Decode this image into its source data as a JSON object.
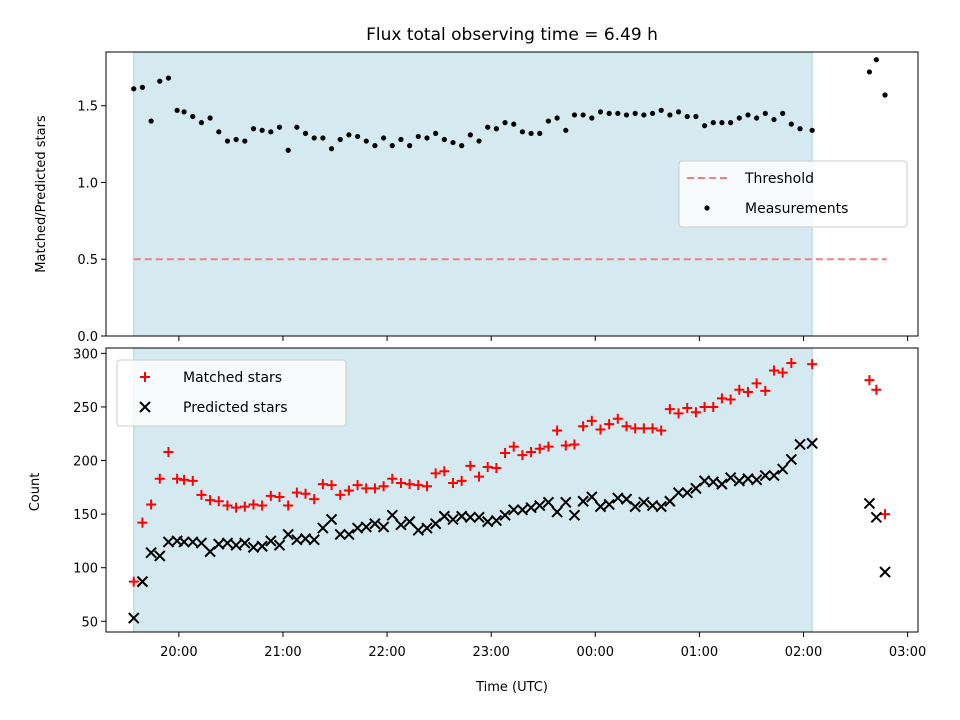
{
  "chart_data": [
    {
      "type": "scatter",
      "title": "Flux total observing time = 6.49 h",
      "xlabel": "",
      "ylabel": "Matched/Predicted stars",
      "ylim": [
        0,
        1.85
      ],
      "yticks": [
        0.0,
        0.5,
        1.0,
        1.5
      ],
      "ytick_labels": [
        "0.0",
        "0.5",
        "1.0",
        "1.5"
      ],
      "shaded_span": {
        "start": "19:34",
        "end": "02:05",
        "color": "#d4eaf0"
      },
      "legend": {
        "placement": "center-right"
      },
      "series": [
        {
          "name": "Threshold",
          "style": "dashed-line",
          "color": "#f08080",
          "points": [
            [
              "19:34",
              0.5
            ],
            [
              "02:48",
              0.5
            ]
          ]
        },
        {
          "name": "Measurements",
          "style": "dot",
          "color": "#000000",
          "points": [
            [
              "19:34",
              1.61
            ],
            [
              "19:39",
              1.62
            ],
            [
              "19:44",
              1.4
            ],
            [
              "19:49",
              1.66
            ],
            [
              "19:54",
              1.68
            ],
            [
              "19:59",
              1.47
            ],
            [
              "20:03",
              1.46
            ],
            [
              "20:08",
              1.43
            ],
            [
              "20:13",
              1.39
            ],
            [
              "20:18",
              1.42
            ],
            [
              "20:23",
              1.33
            ],
            [
              "20:28",
              1.27
            ],
            [
              "20:33",
              1.28
            ],
            [
              "20:38",
              1.27
            ],
            [
              "20:43",
              1.35
            ],
            [
              "20:48",
              1.34
            ],
            [
              "20:53",
              1.33
            ],
            [
              "20:58",
              1.36
            ],
            [
              "21:03",
              1.21
            ],
            [
              "21:08",
              1.36
            ],
            [
              "21:13",
              1.32
            ],
            [
              "21:18",
              1.29
            ],
            [
              "21:23",
              1.29
            ],
            [
              "21:28",
              1.22
            ],
            [
              "21:33",
              1.28
            ],
            [
              "21:38",
              1.31
            ],
            [
              "21:43",
              1.3
            ],
            [
              "21:48",
              1.27
            ],
            [
              "21:53",
              1.24
            ],
            [
              "21:58",
              1.29
            ],
            [
              "22:03",
              1.24
            ],
            [
              "22:08",
              1.28
            ],
            [
              "22:13",
              1.24
            ],
            [
              "22:18",
              1.3
            ],
            [
              "22:23",
              1.29
            ],
            [
              "22:28",
              1.32
            ],
            [
              "22:33",
              1.28
            ],
            [
              "22:38",
              1.26
            ],
            [
              "22:43",
              1.24
            ],
            [
              "22:48",
              1.31
            ],
            [
              "22:53",
              1.27
            ],
            [
              "22:58",
              1.36
            ],
            [
              "23:03",
              1.35
            ],
            [
              "23:08",
              1.39
            ],
            [
              "23:13",
              1.38
            ],
            [
              "23:18",
              1.33
            ],
            [
              "23:23",
              1.32
            ],
            [
              "23:28",
              1.32
            ],
            [
              "23:33",
              1.4
            ],
            [
              "23:38",
              1.42
            ],
            [
              "23:43",
              1.34
            ],
            [
              "23:48",
              1.44
            ],
            [
              "23:53",
              1.44
            ],
            [
              "23:58",
              1.42
            ],
            [
              "00:03",
              1.46
            ],
            [
              "00:08",
              1.45
            ],
            [
              "00:13",
              1.45
            ],
            [
              "00:18",
              1.44
            ],
            [
              "00:23",
              1.45
            ],
            [
              "00:28",
              1.44
            ],
            [
              "00:33",
              1.45
            ],
            [
              "00:38",
              1.47
            ],
            [
              "00:43",
              1.44
            ],
            [
              "00:48",
              1.46
            ],
            [
              "00:53",
              1.43
            ],
            [
              "00:58",
              1.43
            ],
            [
              "01:03",
              1.37
            ],
            [
              "01:08",
              1.39
            ],
            [
              "01:13",
              1.39
            ],
            [
              "01:18",
              1.39
            ],
            [
              "01:23",
              1.42
            ],
            [
              "01:28",
              1.44
            ],
            [
              "01:33",
              1.42
            ],
            [
              "01:38",
              1.45
            ],
            [
              "01:43",
              1.41
            ],
            [
              "01:48",
              1.45
            ],
            [
              "01:53",
              1.38
            ],
            [
              "01:58",
              1.35
            ],
            [
              "02:05",
              1.34
            ],
            [
              "02:38",
              1.72
            ],
            [
              "02:42",
              1.8
            ],
            [
              "02:47",
              1.57
            ]
          ]
        }
      ]
    },
    {
      "type": "scatter",
      "title": "",
      "xlabel": "Time (UTC)",
      "ylabel": "Count",
      "ylim": [
        40,
        305
      ],
      "yticks": [
        50,
        100,
        150,
        200,
        250,
        300
      ],
      "ytick_labels": [
        "50",
        "100",
        "150",
        "200",
        "250",
        "300"
      ],
      "xlim": [
        "19:18",
        "03:06"
      ],
      "xticks": [
        "20:00",
        "21:00",
        "22:00",
        "23:00",
        "00:00",
        "01:00",
        "02:00",
        "03:00"
      ],
      "xtick_labels": [
        "20:00",
        "21:00",
        "22:00",
        "23:00",
        "00:00",
        "01:00",
        "02:00",
        "03:00"
      ],
      "shaded_span": {
        "start": "19:34",
        "end": "02:05",
        "color": "#d4eaf0"
      },
      "legend": {
        "placement": "upper-left"
      },
      "series": [
        {
          "name": "Matched stars",
          "style": "plus",
          "color": "#ff0000",
          "points": [
            [
              "19:34",
              87
            ],
            [
              "19:39",
              142
            ],
            [
              "19:44",
              159
            ],
            [
              "19:49",
              183
            ],
            [
              "19:54",
              208
            ],
            [
              "19:59",
              183
            ],
            [
              "20:03",
              182
            ],
            [
              "20:08",
              181
            ],
            [
              "20:13",
              168
            ],
            [
              "20:18",
              163
            ],
            [
              "20:23",
              162
            ],
            [
              "20:28",
              158
            ],
            [
              "20:33",
              156
            ],
            [
              "20:38",
              157
            ],
            [
              "20:43",
              159
            ],
            [
              "20:48",
              158
            ],
            [
              "20:53",
              167
            ],
            [
              "20:58",
              166
            ],
            [
              "21:03",
              158
            ],
            [
              "21:08",
              170
            ],
            [
              "21:13",
              169
            ],
            [
              "21:18",
              164
            ],
            [
              "21:23",
              178
            ],
            [
              "21:28",
              177
            ],
            [
              "21:33",
              168
            ],
            [
              "21:38",
              172
            ],
            [
              "21:43",
              177
            ],
            [
              "21:48",
              174
            ],
            [
              "21:53",
              174
            ],
            [
              "21:58",
              176
            ],
            [
              "22:03",
              183
            ],
            [
              "22:08",
              179
            ],
            [
              "22:13",
              178
            ],
            [
              "22:18",
              177
            ],
            [
              "22:23",
              176
            ],
            [
              "22:28",
              188
            ],
            [
              "22:33",
              190
            ],
            [
              "22:38",
              179
            ],
            [
              "22:43",
              181
            ],
            [
              "22:48",
              195
            ],
            [
              "22:53",
              185
            ],
            [
              "22:58",
              194
            ],
            [
              "23:03",
              193
            ],
            [
              "23:08",
              207
            ],
            [
              "23:13",
              213
            ],
            [
              "23:18",
              205
            ],
            [
              "23:23",
              208
            ],
            [
              "23:28",
              211
            ],
            [
              "23:33",
              213
            ],
            [
              "23:38",
              228
            ],
            [
              "23:43",
              214
            ],
            [
              "23:48",
              215
            ],
            [
              "23:53",
              232
            ],
            [
              "23:58",
              237
            ],
            [
              "00:03",
              229
            ],
            [
              "00:08",
              234
            ],
            [
              "00:13",
              239
            ],
            [
              "00:18",
              232
            ],
            [
              "00:23",
              230
            ],
            [
              "00:28",
              230
            ],
            [
              "00:33",
              230
            ],
            [
              "00:38",
              228
            ],
            [
              "00:43",
              248
            ],
            [
              "00:48",
              244
            ],
            [
              "00:53",
              249
            ],
            [
              "00:58",
              245
            ],
            [
              "01:03",
              250
            ],
            [
              "01:08",
              250
            ],
            [
              "01:13",
              258
            ],
            [
              "01:18",
              257
            ],
            [
              "01:23",
              266
            ],
            [
              "01:28",
              264
            ],
            [
              "01:33",
              272
            ],
            [
              "01:38",
              265
            ],
            [
              "01:43",
              284
            ],
            [
              "01:48",
              282
            ],
            [
              "01:53",
              291
            ],
            [
              "02:05",
              290
            ],
            [
              "02:38",
              275
            ],
            [
              "02:42",
              266
            ],
            [
              "02:47",
              150
            ]
          ]
        },
        {
          "name": "Predicted stars",
          "style": "cross",
          "color": "#000000",
          "points": [
            [
              "19:34",
              53
            ],
            [
              "19:39",
              87
            ],
            [
              "19:44",
              114
            ],
            [
              "19:49",
              111
            ],
            [
              "19:54",
              124
            ],
            [
              "19:59",
              125
            ],
            [
              "20:03",
              124
            ],
            [
              "20:08",
              124
            ],
            [
              "20:13",
              123
            ],
            [
              "20:18",
              115
            ],
            [
              "20:23",
              122
            ],
            [
              "20:28",
              123
            ],
            [
              "20:33",
              121
            ],
            [
              "20:38",
              123
            ],
            [
              "20:43",
              119
            ],
            [
              "20:48",
              120
            ],
            [
              "20:53",
              125
            ],
            [
              "20:58",
              121
            ],
            [
              "21:03",
              131
            ],
            [
              "21:08",
              126
            ],
            [
              "21:13",
              127
            ],
            [
              "21:18",
              126
            ],
            [
              "21:23",
              137
            ],
            [
              "21:28",
              145
            ],
            [
              "21:33",
              131
            ],
            [
              "21:38",
              131
            ],
            [
              "21:43",
              137
            ],
            [
              "21:48",
              138
            ],
            [
              "21:53",
              141
            ],
            [
              "21:58",
              138
            ],
            [
              "22:03",
              149
            ],
            [
              "22:08",
              140
            ],
            [
              "22:13",
              143
            ],
            [
              "22:18",
              135
            ],
            [
              "22:23",
              137
            ],
            [
              "22:28",
              141
            ],
            [
              "22:33",
              148
            ],
            [
              "22:38",
              145
            ],
            [
              "22:43",
              148
            ],
            [
              "22:48",
              147
            ],
            [
              "22:53",
              147
            ],
            [
              "22:58",
              143
            ],
            [
              "23:03",
              144
            ],
            [
              "23:08",
              149
            ],
            [
              "23:13",
              154
            ],
            [
              "23:18",
              154
            ],
            [
              "23:23",
              156
            ],
            [
              "23:28",
              158
            ],
            [
              "23:33",
              161
            ],
            [
              "23:38",
              152
            ],
            [
              "23:43",
              161
            ],
            [
              "23:48",
              149
            ],
            [
              "23:53",
              162
            ],
            [
              "23:58",
              166
            ],
            [
              "00:03",
              157
            ],
            [
              "00:08",
              159
            ],
            [
              "00:13",
              165
            ],
            [
              "00:18",
              164
            ],
            [
              "00:23",
              157
            ],
            [
              "00:28",
              161
            ],
            [
              "00:33",
              158
            ],
            [
              "00:38",
              157
            ],
            [
              "00:43",
              162
            ],
            [
              "00:48",
              170
            ],
            [
              "00:53",
              170
            ],
            [
              "00:58",
              174
            ],
            [
              "01:03",
              181
            ],
            [
              "01:08",
              180
            ],
            [
              "01:13",
              178
            ],
            [
              "01:18",
              184
            ],
            [
              "01:23",
              181
            ],
            [
              "01:28",
              183
            ],
            [
              "01:33",
              182
            ],
            [
              "01:38",
              186
            ],
            [
              "01:43",
              186
            ],
            [
              "01:48",
              192
            ],
            [
              "01:53",
              201
            ],
            [
              "01:58",
              215
            ],
            [
              "02:05",
              216
            ],
            [
              "02:38",
              160
            ],
            [
              "02:42",
              147
            ],
            [
              "02:47",
              96
            ]
          ]
        }
      ]
    }
  ]
}
